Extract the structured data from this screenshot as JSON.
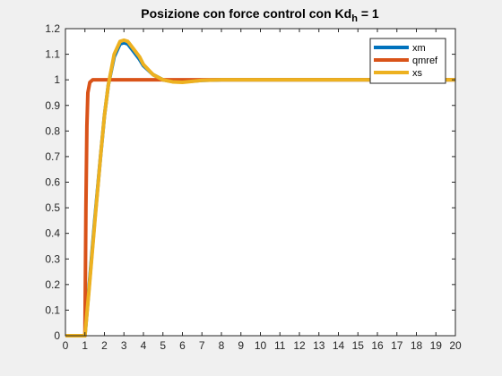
{
  "chart_data": {
    "type": "line",
    "title": "Posizione con force control con Kd",
    "title_subscript": "h",
    "title_suffix": " = 1",
    "xlabel": "",
    "ylabel": "",
    "xlim": [
      0,
      20
    ],
    "ylim": [
      0,
      1.2
    ],
    "xticks": [
      0,
      1,
      2,
      3,
      4,
      5,
      6,
      7,
      8,
      9,
      10,
      11,
      12,
      13,
      14,
      15,
      16,
      17,
      18,
      19,
      20
    ],
    "yticks": [
      0,
      0.1,
      0.2,
      0.3,
      0.4,
      0.5,
      0.6,
      0.7,
      0.8,
      0.9,
      1,
      1.1,
      1.2
    ],
    "grid": false,
    "legend_position": "top-right",
    "series": [
      {
        "name": "xm",
        "color": "#0072bd",
        "points": [
          [
            0,
            0
          ],
          [
            1,
            0
          ],
          [
            1.2,
            0.18
          ],
          [
            1.5,
            0.45
          ],
          [
            1.8,
            0.7
          ],
          [
            2.0,
            0.86
          ],
          [
            2.2,
            0.98
          ],
          [
            2.5,
            1.09
          ],
          [
            2.8,
            1.14
          ],
          [
            3.0,
            1.145
          ],
          [
            3.2,
            1.14
          ],
          [
            3.5,
            1.11
          ],
          [
            3.8,
            1.08
          ],
          [
            4.0,
            1.055
          ],
          [
            4.5,
            1.02
          ],
          [
            5.0,
            1.0
          ],
          [
            5.5,
            0.993
          ],
          [
            6.0,
            0.992
          ],
          [
            6.5,
            0.995
          ],
          [
            7.0,
            0.998
          ],
          [
            8.0,
            1.0
          ],
          [
            20,
            1.0
          ]
        ]
      },
      {
        "name": "qmref",
        "color": "#d95319",
        "points": [
          [
            0,
            0
          ],
          [
            1,
            0
          ],
          [
            1.05,
            0.5
          ],
          [
            1.1,
            0.82
          ],
          [
            1.15,
            0.95
          ],
          [
            1.25,
            0.99
          ],
          [
            1.4,
            1.0
          ],
          [
            20,
            1.0
          ]
        ]
      },
      {
        "name": "xs",
        "color": "#edb120",
        "points": [
          [
            0,
            0
          ],
          [
            1,
            0
          ],
          [
            1.2,
            0.17
          ],
          [
            1.5,
            0.44
          ],
          [
            1.8,
            0.7
          ],
          [
            2.0,
            0.86
          ],
          [
            2.2,
            0.98
          ],
          [
            2.5,
            1.1
          ],
          [
            2.8,
            1.15
          ],
          [
            3.0,
            1.155
          ],
          [
            3.2,
            1.15
          ],
          [
            3.5,
            1.12
          ],
          [
            3.8,
            1.09
          ],
          [
            4.0,
            1.06
          ],
          [
            4.5,
            1.02
          ],
          [
            5.0,
            1.0
          ],
          [
            5.5,
            0.992
          ],
          [
            6.0,
            0.99
          ],
          [
            6.5,
            0.994
          ],
          [
            7.0,
            0.998
          ],
          [
            8.0,
            1.0
          ],
          [
            20,
            1.0
          ]
        ]
      }
    ]
  }
}
